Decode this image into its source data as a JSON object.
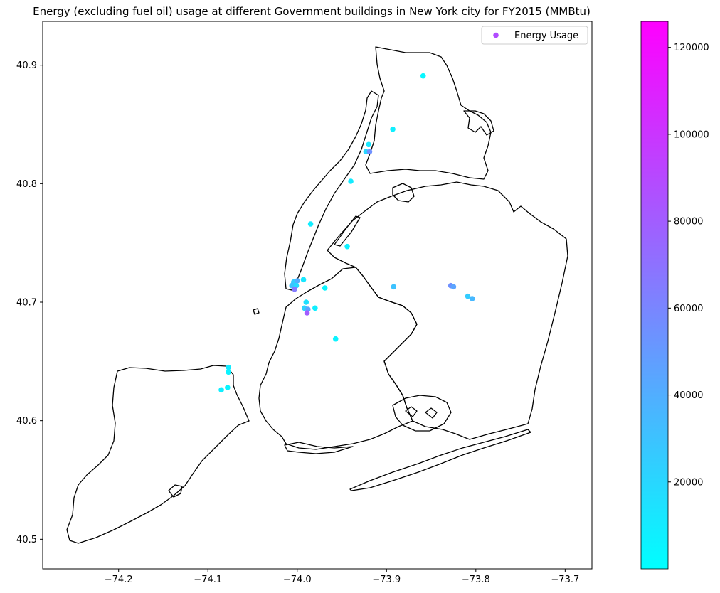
{
  "chart_data": {
    "type": "scatter",
    "title": "Energy (excluding fuel oil) usage at different Government buildings in New York city for FY2015 (MMBtu)",
    "xlabel": "",
    "ylabel": "",
    "xlim": [
      -74.285,
      -73.67
    ],
    "ylim": [
      40.475,
      40.937
    ],
    "x_ticks": [
      -74.2,
      -74.1,
      -74.0,
      -73.9,
      -73.8,
      -73.7
    ],
    "x_tick_labels": [
      "−74.2",
      "−74.1",
      "−74.0",
      "−73.9",
      "−73.8",
      "−73.7"
    ],
    "y_ticks": [
      40.5,
      40.6,
      40.7,
      40.8,
      40.9
    ],
    "y_tick_labels": [
      "40.5",
      "40.6",
      "40.7",
      "40.8",
      "40.9"
    ],
    "legend": {
      "label": "Energy Usage",
      "position": "top-right",
      "marker_color": "#b14cff"
    },
    "colorbar": {
      "cmap": "cool",
      "min": 0,
      "max": 126000,
      "colors": [
        "#00ffff",
        "#ff00ff"
      ],
      "ticks": [
        20000,
        40000,
        60000,
        80000,
        100000,
        120000
      ],
      "tick_labels": [
        "20000",
        "40000",
        "60000",
        "80000",
        "100000",
        "120000"
      ]
    },
    "grid": false,
    "series": [
      {
        "points": [
          {
            "x": -73.859,
            "y": 40.891,
            "v": 4000
          },
          {
            "x": -73.893,
            "y": 40.846,
            "v": 8000
          },
          {
            "x": -73.92,
            "y": 40.833,
            "v": 12000
          },
          {
            "x": -73.923,
            "y": 40.827,
            "v": 20000
          },
          {
            "x": -73.919,
            "y": 40.827,
            "v": 55000
          },
          {
            "x": -73.94,
            "y": 40.802,
            "v": 10000
          },
          {
            "x": -73.985,
            "y": 40.766,
            "v": 9000
          },
          {
            "x": -73.944,
            "y": 40.747,
            "v": 7000
          },
          {
            "x": -73.993,
            "y": 40.719,
            "v": 12000
          },
          {
            "x": -74.004,
            "y": 40.717,
            "v": 25000
          },
          {
            "x": -74.0,
            "y": 40.718,
            "v": 40000
          },
          {
            "x": -74.006,
            "y": 40.714,
            "v": 30000
          },
          {
            "x": -74.001,
            "y": 40.714,
            "v": 18000
          },
          {
            "x": -74.003,
            "y": 40.711,
            "v": 65000
          },
          {
            "x": -73.969,
            "y": 40.712,
            "v": 5000
          },
          {
            "x": -73.99,
            "y": 40.7,
            "v": 15000
          },
          {
            "x": -73.992,
            "y": 40.695,
            "v": 22000
          },
          {
            "x": -73.988,
            "y": 40.694,
            "v": 45000
          },
          {
            "x": -73.98,
            "y": 40.695,
            "v": 8000
          },
          {
            "x": -73.989,
            "y": 40.691,
            "v": 80000
          },
          {
            "x": -73.957,
            "y": 40.669,
            "v": 6000
          },
          {
            "x": -73.892,
            "y": 40.713,
            "v": 30000
          },
          {
            "x": -73.828,
            "y": 40.714,
            "v": 55000
          },
          {
            "x": -73.825,
            "y": 40.713,
            "v": 45000
          },
          {
            "x": -73.809,
            "y": 40.705,
            "v": 25000
          },
          {
            "x": -73.804,
            "y": 40.703,
            "v": 35000
          },
          {
            "x": -74.077,
            "y": 40.645,
            "v": 10000
          },
          {
            "x": -74.077,
            "y": 40.641,
            "v": 6000
          },
          {
            "x": -74.078,
            "y": 40.628,
            "v": 5000
          },
          {
            "x": -74.085,
            "y": 40.626,
            "v": 8000
          }
        ]
      }
    ]
  }
}
